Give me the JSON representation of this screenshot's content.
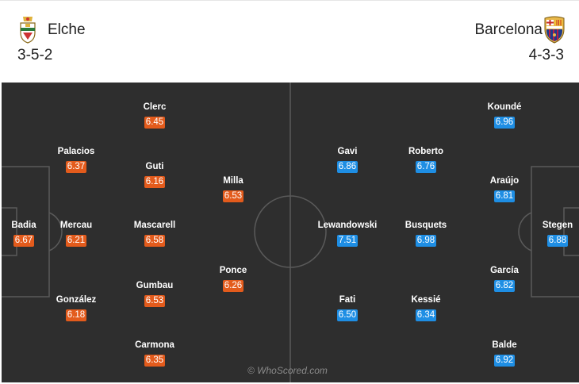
{
  "home": {
    "name": "Elche",
    "formation": "3-5-2",
    "color": "#e35b1c",
    "crest_icon": "elche-crest-icon",
    "players": [
      {
        "name": "Badia",
        "rating": "6.67"
      },
      {
        "name": "Palacios",
        "rating": "6.37"
      },
      {
        "name": "Mercau",
        "rating": "6.21"
      },
      {
        "name": "González",
        "rating": "6.18"
      },
      {
        "name": "Clerc",
        "rating": "6.45"
      },
      {
        "name": "Guti",
        "rating": "6.16"
      },
      {
        "name": "Mascarell",
        "rating": "6.58"
      },
      {
        "name": "Gumbau",
        "rating": "6.53"
      },
      {
        "name": "Carmona",
        "rating": "6.35"
      },
      {
        "name": "Milla",
        "rating": "6.53"
      },
      {
        "name": "Ponce",
        "rating": "6.26"
      }
    ]
  },
  "away": {
    "name": "Barcelona",
    "formation": "4-3-3",
    "color": "#1e8ee4",
    "crest_icon": "barcelona-crest-icon",
    "players": [
      {
        "name": "Koundé",
        "rating": "6.96"
      },
      {
        "name": "Araújo",
        "rating": "6.81"
      },
      {
        "name": "Stegen",
        "rating": "6.88"
      },
      {
        "name": "García",
        "rating": "6.82"
      },
      {
        "name": "Balde",
        "rating": "6.92"
      },
      {
        "name": "Gavi",
        "rating": "6.86"
      },
      {
        "name": "Roberto",
        "rating": "6.76"
      },
      {
        "name": "Lewandowski",
        "rating": "7.51"
      },
      {
        "name": "Busquets",
        "rating": "6.98"
      },
      {
        "name": "Fati",
        "rating": "6.50"
      },
      {
        "name": "Kessié",
        "rating": "6.34"
      }
    ]
  },
  "watermark": "© WhoScored.com"
}
